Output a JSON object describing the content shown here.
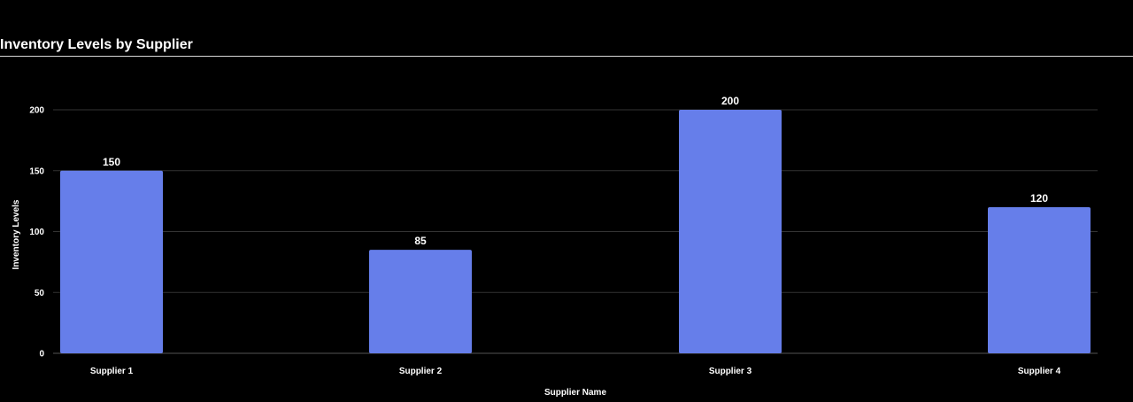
{
  "chart_data": {
    "type": "bar",
    "title": "Inventory Levels by Supplier",
    "xlabel": "Supplier Name",
    "ylabel": "Inventory Levels",
    "categories": [
      "Supplier 1",
      "Supplier 2",
      "Supplier 3",
      "Supplier 4"
    ],
    "values": [
      150,
      85,
      200,
      120
    ],
    "data_labels": [
      "150",
      "85",
      "200",
      "120"
    ],
    "ylim": [
      0,
      200
    ],
    "yticks": [
      0,
      50,
      100,
      150,
      200
    ],
    "ytick_labels": [
      "0",
      "50",
      "100",
      "150",
      "200"
    ],
    "grid": true,
    "legend": "none",
    "colors": {
      "bar": "#667eea",
      "grid": "#333333",
      "text": "#ffffff",
      "background": "#000000"
    }
  }
}
